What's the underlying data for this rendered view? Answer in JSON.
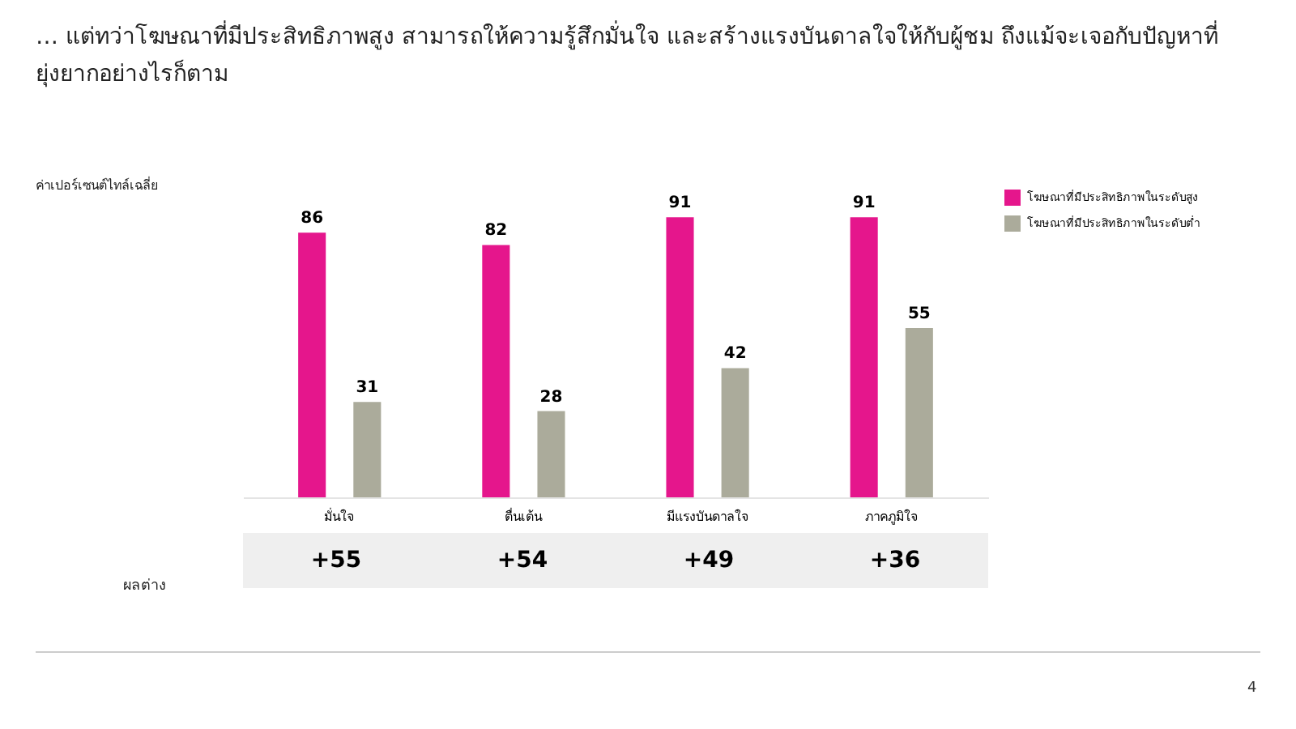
{
  "chart_data": {
    "type": "bar",
    "title": "… แต่ทว่าโฆษณาที่มีประสิทธิภาพสูง สามารถให้ความรู้สึกมั่นใจ และสร้างแรงบันดาลใจให้กับผู้ชม ถึงแม้จะเจอกับปัญหาที่ยุ่งยากอย่างไรก็ตาม",
    "categories": [
      "มั่นใจ",
      "ตื่นเต้น",
      "มีแรงบันดาลใจ",
      "ภาคภูมิใจ"
    ],
    "series": [
      {
        "name": "โฆษณาที่มีประสิทธิภาพในระดับสูง",
        "color": "#e5168c",
        "values": [
          86,
          82,
          91,
          91
        ]
      },
      {
        "name": "โฆษณาที่มีประสิทธิภาพในระดับต่ำ",
        "color": "#abab9b",
        "values": [
          31,
          28,
          42,
          55
        ]
      }
    ],
    "data_labels": true,
    "grid": false,
    "legend": "top right",
    "annotations": [
      "ค่าเปอร์เซนต์ไทล์เฉลี่ย",
      "ผลต่าง",
      "+55",
      "+54",
      "+49",
      "+36",
      "4"
    ]
  }
}
